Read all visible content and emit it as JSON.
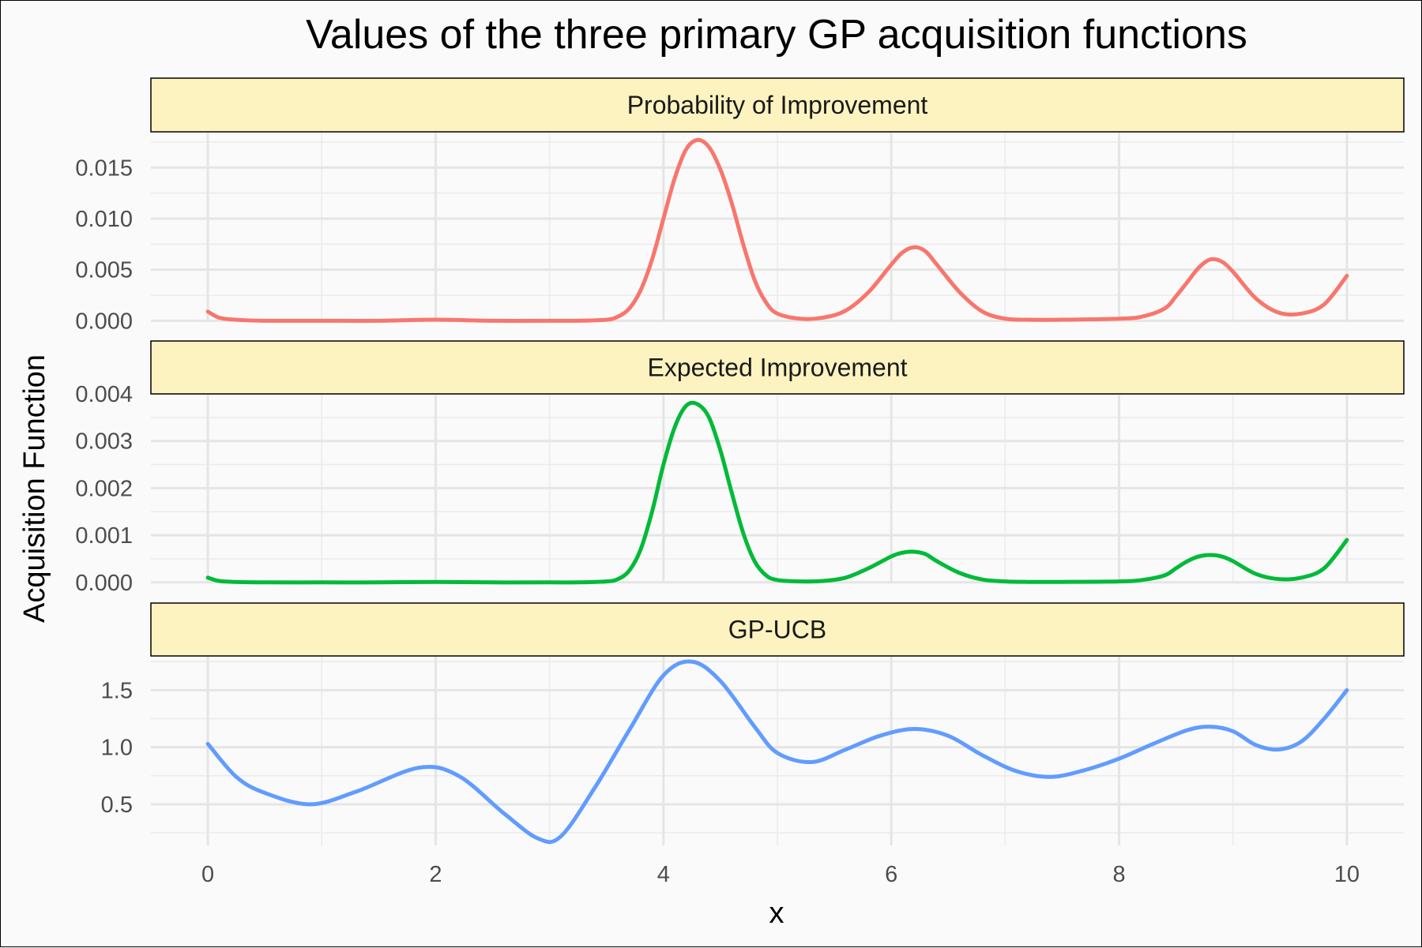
{
  "chart_data": {
    "type": "line",
    "title": "Values of the three primary GP acquisition functions",
    "xlabel": "x",
    "ylabel": "Acquisition Function",
    "xlim": [
      -0.5,
      10.5
    ],
    "x_ticks": [
      0,
      2,
      4,
      6,
      8,
      10
    ],
    "grid": true,
    "legend": "none",
    "facets": [
      {
        "name": "Probability of Improvement",
        "color": "#F8766D",
        "ylim": [
          -5e-05,
          0.0185
        ],
        "y_ticks": [
          0.0,
          0.005,
          0.01,
          0.015
        ],
        "y_tick_labels": [
          "0.000",
          "0.005",
          "0.010",
          "0.015"
        ],
        "x": [
          0,
          0.1,
          0.25,
          0.5,
          1,
          1.5,
          2,
          2.5,
          3,
          3.25,
          3.5,
          3.6,
          3.7,
          3.8,
          3.9,
          4.0,
          4.1,
          4.2,
          4.3,
          4.4,
          4.5,
          4.6,
          4.7,
          4.8,
          4.9,
          5.0,
          5.2,
          5.4,
          5.6,
          5.8,
          6.0,
          6.1,
          6.2,
          6.3,
          6.4,
          6.6,
          6.8,
          7.0,
          7.2,
          7.5,
          8.0,
          8.2,
          8.4,
          8.5,
          8.6,
          8.7,
          8.8,
          8.9,
          9.0,
          9.2,
          9.4,
          9.6,
          9.8,
          10.0
        ],
        "y": [
          0.0009,
          0.0003,
          0.0001,
          0.0,
          0.0,
          0.0,
          0.0001,
          0.0,
          0.0,
          0.0,
          0.0001,
          0.0004,
          0.0012,
          0.003,
          0.006,
          0.01,
          0.014,
          0.0168,
          0.0177,
          0.017,
          0.0148,
          0.0115,
          0.0075,
          0.004,
          0.0018,
          0.0007,
          0.0002,
          0.0003,
          0.001,
          0.0028,
          0.0055,
          0.0067,
          0.0072,
          0.0068,
          0.0055,
          0.0028,
          0.0009,
          0.0002,
          0.0001,
          0.0001,
          0.0002,
          0.0004,
          0.0012,
          0.0024,
          0.0038,
          0.0052,
          0.006,
          0.0058,
          0.0048,
          0.0022,
          0.0008,
          0.0007,
          0.0016,
          0.0044
        ]
      },
      {
        "name": "Expected Improvement",
        "color": "#00BA38",
        "ylim": [
          -2e-05,
          0.004
        ],
        "y_ticks": [
          0.0,
          0.001,
          0.002,
          0.003,
          0.004
        ],
        "y_tick_labels": [
          "0.000",
          "0.001",
          "0.002",
          "0.003",
          "0.004"
        ],
        "x": [
          0,
          0.1,
          0.25,
          0.5,
          1,
          1.5,
          2,
          2.5,
          3,
          3.25,
          3.5,
          3.6,
          3.7,
          3.8,
          3.9,
          4.0,
          4.1,
          4.2,
          4.3,
          4.4,
          4.5,
          4.6,
          4.7,
          4.8,
          4.9,
          5.0,
          5.2,
          5.4,
          5.6,
          5.8,
          6.0,
          6.1,
          6.2,
          6.3,
          6.4,
          6.6,
          6.8,
          7.0,
          7.2,
          7.5,
          8.0,
          8.2,
          8.4,
          8.5,
          8.6,
          8.7,
          8.8,
          8.9,
          9.0,
          9.2,
          9.4,
          9.6,
          9.8,
          10.0
        ],
        "y": [
          0.0001,
          3e-05,
          1e-05,
          0.0,
          0.0,
          0.0,
          1e-05,
          0.0,
          0.0,
          0.0,
          2e-05,
          7e-05,
          0.00025,
          0.0007,
          0.0015,
          0.0025,
          0.0033,
          0.00375,
          0.00378,
          0.0035,
          0.0028,
          0.0019,
          0.00105,
          0.00045,
          0.00015,
          5e-05,
          2e-05,
          3e-05,
          0.0001,
          0.0003,
          0.00055,
          0.00063,
          0.00065,
          0.0006,
          0.00045,
          0.0002,
          6e-05,
          2e-05,
          1e-05,
          1e-05,
          2e-05,
          5e-05,
          0.00015,
          0.0003,
          0.00045,
          0.00055,
          0.00058,
          0.00055,
          0.00045,
          0.00018,
          7e-05,
          0.0001,
          0.0003,
          0.0009
        ]
      },
      {
        "name": "GP-UCB",
        "color": "#619CFF",
        "ylim": [
          0.14,
          1.8
        ],
        "y_ticks": [
          0.5,
          1.0,
          1.5
        ],
        "y_tick_labels": [
          "0.5",
          "1.0",
          "1.5"
        ],
        "x": [
          0,
          0.25,
          0.5,
          0.9,
          1.3,
          1.85,
          2.2,
          2.6,
          2.9,
          3.1,
          3.4,
          3.7,
          4.0,
          4.25,
          4.5,
          4.8,
          5.0,
          5.3,
          5.6,
          5.9,
          6.2,
          6.5,
          6.8,
          7.1,
          7.4,
          7.7,
          8.0,
          8.3,
          8.6,
          8.8,
          9.0,
          9.2,
          9.4,
          9.6,
          9.8,
          10.0
        ],
        "y": [
          1.03,
          0.74,
          0.6,
          0.5,
          0.61,
          0.82,
          0.75,
          0.42,
          0.2,
          0.22,
          0.65,
          1.15,
          1.63,
          1.75,
          1.58,
          1.18,
          0.95,
          0.87,
          0.98,
          1.1,
          1.16,
          1.1,
          0.93,
          0.79,
          0.74,
          0.8,
          0.9,
          1.03,
          1.15,
          1.18,
          1.14,
          1.02,
          0.98,
          1.05,
          1.25,
          1.5
        ]
      }
    ]
  }
}
